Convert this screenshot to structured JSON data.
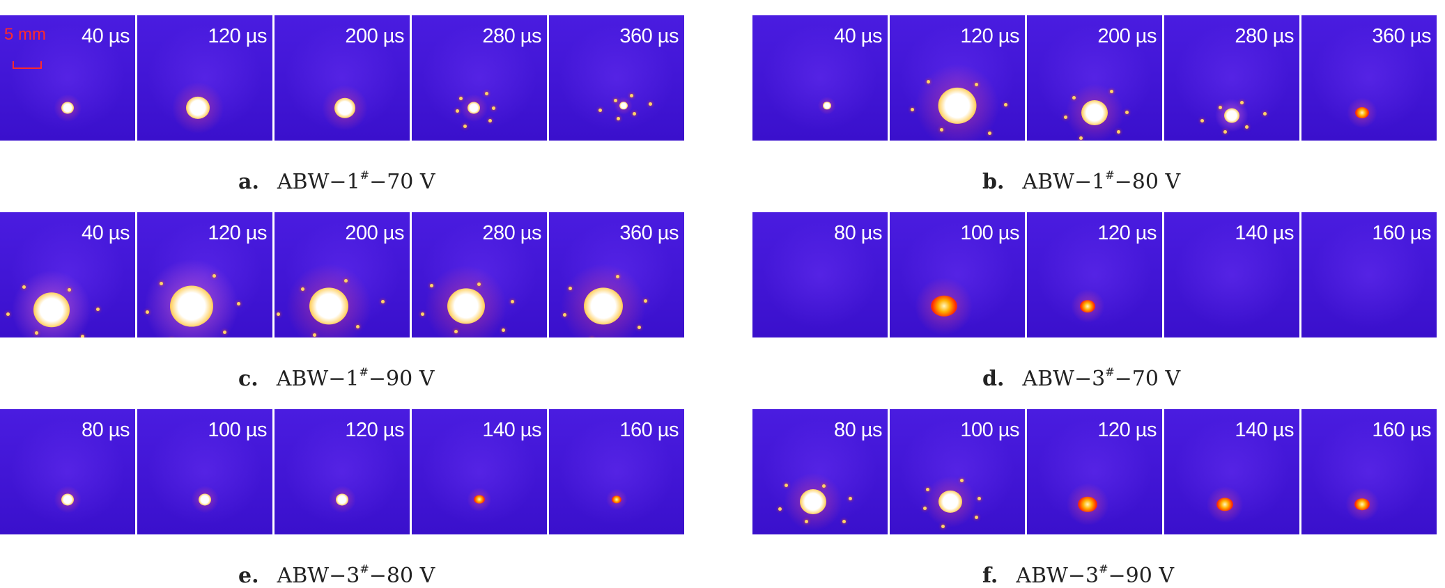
{
  "scale_bar": {
    "label": "5 mm"
  },
  "panels": [
    {
      "id": "a",
      "letter": "a.",
      "caption_prefix": "ABW−1",
      "sup": "#",
      "caption_suffix": "−70 V",
      "frames": [
        "40 µs",
        "120 µs",
        "200 µs",
        "280 µs",
        "360 µs"
      ]
    },
    {
      "id": "b",
      "letter": "b.",
      "caption_prefix": "ABW−1",
      "sup": "#",
      "caption_suffix": "−80 V",
      "frames": [
        "40 µs",
        "120 µs",
        "200 µs",
        "280 µs",
        "360 µs"
      ]
    },
    {
      "id": "c",
      "letter": "c.",
      "caption_prefix": "ABW−1",
      "sup": "#",
      "caption_suffix": "−90 V",
      "frames": [
        "40 µs",
        "120 µs",
        "200 µs",
        "280 µs",
        "360 µs"
      ]
    },
    {
      "id": "d",
      "letter": "d.",
      "caption_prefix": "ABW−3",
      "sup": "#",
      "caption_suffix": "−70 V",
      "frames": [
        "80 µs",
        "100 µs",
        "120 µs",
        "140 µs",
        "160 µs"
      ]
    },
    {
      "id": "e",
      "letter": "e.",
      "caption_prefix": "ABW−3",
      "sup": "#",
      "caption_suffix": "−80 V",
      "frames": [
        "80 µs",
        "100 µs",
        "120 µs",
        "140 µs",
        "160 µs"
      ]
    },
    {
      "id": "f",
      "letter": "f.",
      "caption_prefix": "ABW−3",
      "sup": "#",
      "caption_suffix": "−90 V",
      "frames": [
        "80 µs",
        "100 µs",
        "120 µs",
        "140 µs",
        "160 µs"
      ]
    }
  ],
  "colors": {
    "background": "#3a10cc",
    "hot": "#ffffff",
    "warm": "#ffb000",
    "edge": "#ff2a00",
    "scale": "#ff2a2a"
  }
}
